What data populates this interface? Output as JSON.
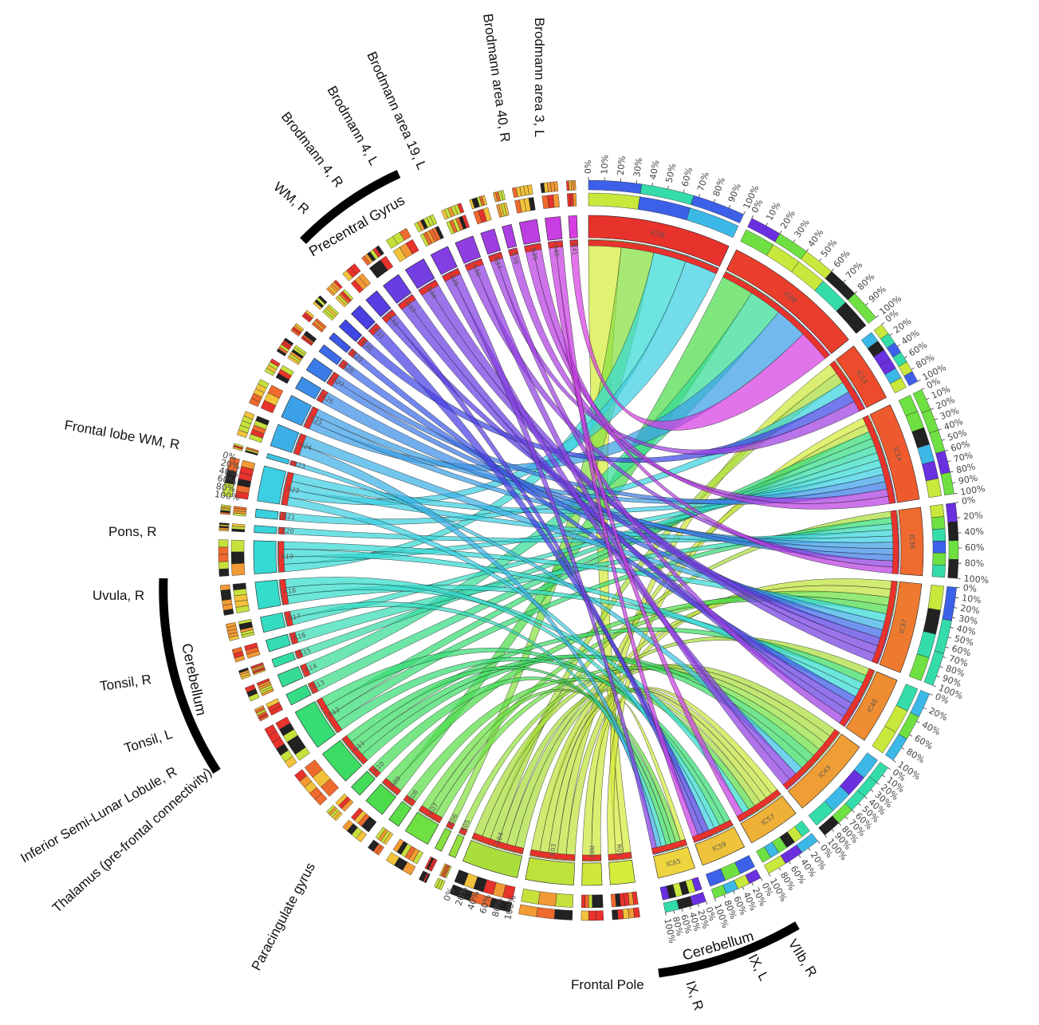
{
  "regions": [
    {
      "id": "R01",
      "color": "#d6ec3c"
    },
    {
      "id": "R02",
      "color": "#cfe83a"
    },
    {
      "id": "R03",
      "color": "#bfe23a"
    },
    {
      "id": "R04",
      "color": "#a9de3c"
    },
    {
      "id": "R05",
      "color": "#96e03e"
    },
    {
      "id": "R06",
      "color": "#86e040"
    },
    {
      "id": "R07",
      "color": "#6ee042"
    },
    {
      "id": "R08",
      "color": "#5ade46"
    },
    {
      "id": "R09",
      "color": "#4ddc4c"
    },
    {
      "id": "R10",
      "color": "#44dc58"
    },
    {
      "id": "R11",
      "color": "#3cdc64"
    },
    {
      "id": "R12",
      "color": "#36dc74"
    },
    {
      "id": "R13",
      "color": "#34dc86"
    },
    {
      "id": "R14",
      "color": "#34dc96"
    },
    {
      "id": "R15",
      "color": "#34dca6"
    },
    {
      "id": "R16",
      "color": "#34dcb4"
    },
    {
      "id": "R17",
      "color": "#34dcc2"
    },
    {
      "id": "R18",
      "color": "#34dccc"
    },
    {
      "id": "R19",
      "color": "#36dad4"
    },
    {
      "id": "R20",
      "color": "#38d6da"
    },
    {
      "id": "R21",
      "color": "#3ad2de"
    },
    {
      "id": "R22",
      "color": "#3ccee2"
    },
    {
      "id": "R23",
      "color": "#3cc2e4"
    },
    {
      "id": "R24",
      "color": "#3cb0e6"
    },
    {
      "id": "R25",
      "color": "#3ca0e8"
    },
    {
      "id": "R26",
      "color": "#3c8ee8"
    },
    {
      "id": "R27",
      "color": "#3c7ce8"
    },
    {
      "id": "R28",
      "color": "#3c6ae8"
    },
    {
      "id": "R29",
      "color": "#3c58e6"
    },
    {
      "id": "R30",
      "color": "#3e46e4"
    },
    {
      "id": "R31",
      "color": "#4a3ee2"
    },
    {
      "id": "R32",
      "color": "#583ee2"
    },
    {
      "id": "R33",
      "color": "#663ee2"
    },
    {
      "id": "R34",
      "color": "#743ee2"
    },
    {
      "id": "R35",
      "color": "#823ee2"
    },
    {
      "id": "R36",
      "color": "#903ee2"
    },
    {
      "id": "R37",
      "color": "#9e3ee2"
    },
    {
      "id": "R38",
      "color": "#ac3ee2"
    },
    {
      "id": "R39",
      "color": "#ba3ee2"
    },
    {
      "id": "R40",
      "color": "#c83ee2"
    },
    {
      "id": "R41",
      "color": "#d63ee2"
    }
  ],
  "components": [
    {
      "id": "IC06",
      "color": "#e8322c"
    },
    {
      "id": "IC08",
      "color": "#ea3e2c"
    },
    {
      "id": "IC13",
      "color": "#ec4c2c"
    },
    {
      "id": "IC14",
      "color": "#ee5a2e"
    },
    {
      "id": "IC36",
      "color": "#ee6a2e"
    },
    {
      "id": "IC37",
      "color": "#ee7a30"
    },
    {
      "id": "IC40",
      "color": "#ee8c32"
    },
    {
      "id": "IC43",
      "color": "#ee9e34"
    },
    {
      "id": "IC57",
      "color": "#eeb036"
    },
    {
      "id": "IC59",
      "color": "#eec23a"
    },
    {
      "id": "IC65",
      "color": "#eed43e"
    }
  ],
  "percent_ticks": [
    "0%",
    "10%",
    "20%",
    "30%",
    "40%",
    "50%",
    "60%",
    "70%",
    "80%",
    "90%",
    "100%"
  ],
  "percent_ticks_short": [
    "0%",
    "20%",
    "40%",
    "60%",
    "80%",
    "100%"
  ],
  "anatomy_labels": {
    "brodmann_3_l": "Brodmann area 3, L",
    "brodmann_40_r": "Brodmann area 40, R",
    "brodmann_19_l": "Brodmann area 19, L",
    "brodmann_4_l": "Brodmann 4, L",
    "brodmann_4_r": "Brodmann 4, R",
    "wm_r": "WM, R",
    "precentral_gyrus": "Precentral Gyrus",
    "frontal_lobe_wm_r": "Frontal lobe WM, R",
    "pons_r": "Pons, R",
    "uvula_r": "Uvula, R",
    "cerebellum_left": "Cerebellum",
    "tonsil_r": "Tonsil, R",
    "tonsil_l": "Tonsil, L",
    "inferior_semi_lunar_r": "Inferior Semi-Lunar Lobule, R",
    "thalamus": "Thalamus (pre-frontal connectivity)",
    "paracingulate": "Paracingulate gyrus",
    "frontal_pole": "Frontal Pole",
    "ix_r": "IX, R",
    "ix_l": "IX, L",
    "viib_r": "VIIb, R",
    "cerebellum_bottom": "Cerebellum"
  }
}
